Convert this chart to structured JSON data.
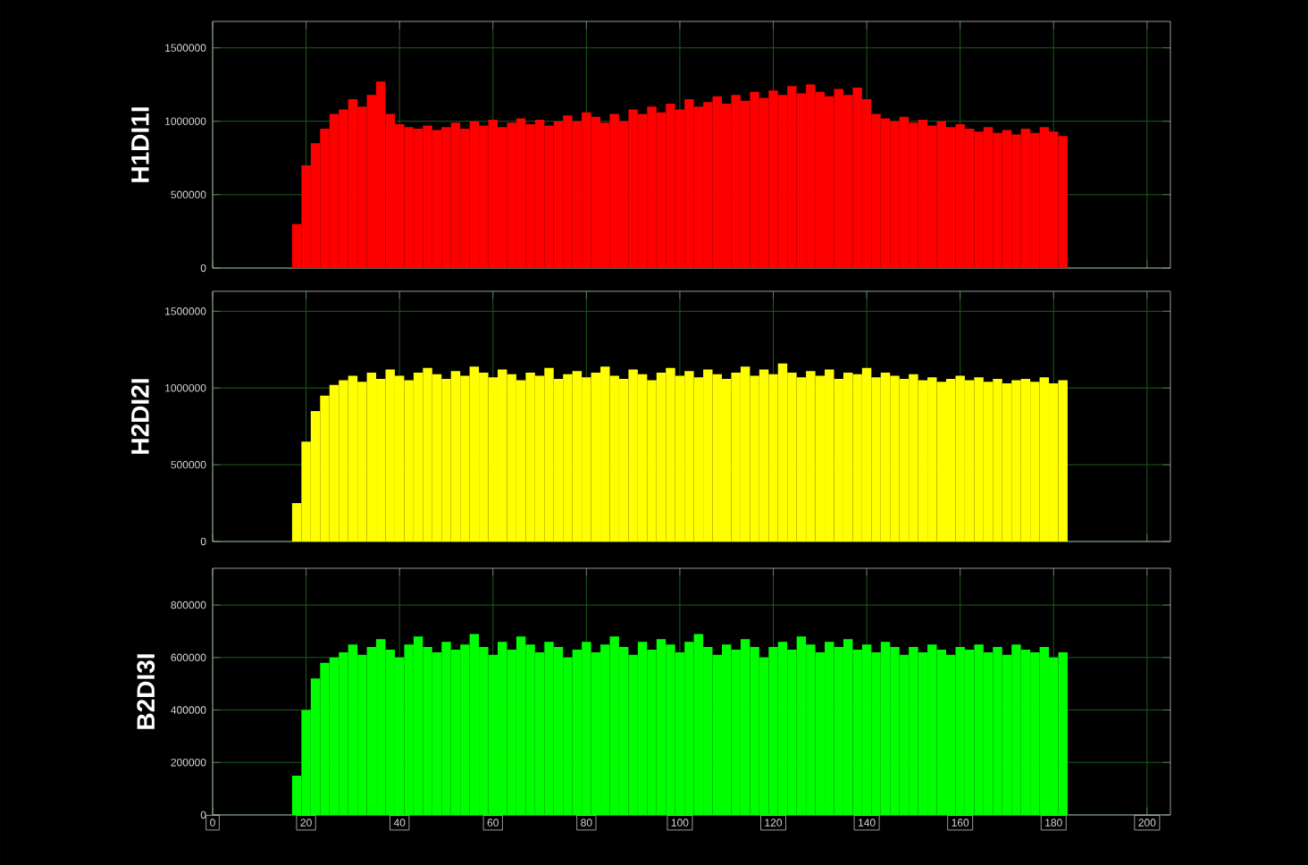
{
  "chart_data": [
    {
      "type": "histogram",
      "ylabel": "H1DI1I",
      "color": "#ff0000",
      "grid": true,
      "tick_labels": "y",
      "xlim": [
        0,
        205
      ],
      "xticks": [
        0,
        20,
        40,
        60,
        80,
        100,
        120,
        140,
        160,
        180,
        200
      ],
      "ylim": [
        0,
        1680000
      ],
      "yticks": [
        0,
        500000,
        1000000,
        1500000
      ],
      "bins": [
        17,
        19,
        21,
        23,
        25,
        27,
        29,
        31,
        33,
        35,
        37,
        39,
        41,
        43,
        45,
        47,
        49,
        51,
        53,
        55,
        57,
        59,
        61,
        63,
        65,
        67,
        69,
        71,
        73,
        75,
        77,
        79,
        81,
        83,
        85,
        87,
        89,
        91,
        93,
        95,
        97,
        99,
        101,
        103,
        105,
        107,
        109,
        111,
        113,
        115,
        117,
        119,
        121,
        123,
        125,
        127,
        129,
        131,
        133,
        135,
        137,
        139,
        141,
        143,
        145,
        147,
        149,
        151,
        153,
        155,
        157,
        159,
        161,
        163,
        165,
        167,
        169,
        171,
        173,
        175,
        177,
        179,
        181,
        183
      ],
      "values": [
        300000,
        700000,
        850000,
        950000,
        1050000,
        1080000,
        1150000,
        1100000,
        1180000,
        1270000,
        1050000,
        980000,
        960000,
        950000,
        970000,
        940000,
        960000,
        990000,
        950000,
        1000000,
        970000,
        1010000,
        960000,
        990000,
        1020000,
        980000,
        1010000,
        970000,
        1000000,
        1040000,
        1000000,
        1060000,
        1030000,
        990000,
        1050000,
        1000000,
        1080000,
        1050000,
        1100000,
        1060000,
        1120000,
        1080000,
        1150000,
        1100000,
        1130000,
        1170000,
        1120000,
        1180000,
        1140000,
        1200000,
        1160000,
        1210000,
        1180000,
        1240000,
        1190000,
        1250000,
        1200000,
        1170000,
        1220000,
        1180000,
        1230000,
        1150000,
        1050000,
        1020000,
        1000000,
        1030000,
        990000,
        1010000,
        970000,
        1000000,
        960000,
        980000,
        950000,
        930000,
        960000,
        920000,
        940000,
        910000,
        950000,
        920000,
        960000,
        930000,
        900000
      ]
    },
    {
      "type": "histogram",
      "ylabel": "H2DI2I",
      "color": "#ffff00",
      "grid": true,
      "tick_labels": "y",
      "xlim": [
        0,
        205
      ],
      "xticks": [
        0,
        20,
        40,
        60,
        80,
        100,
        120,
        140,
        160,
        180,
        200
      ],
      "ylim": [
        0,
        1630000
      ],
      "yticks": [
        0,
        500000,
        1000000,
        1500000
      ],
      "bins": [
        17,
        19,
        21,
        23,
        25,
        27,
        29,
        31,
        33,
        35,
        37,
        39,
        41,
        43,
        45,
        47,
        49,
        51,
        53,
        55,
        57,
        59,
        61,
        63,
        65,
        67,
        69,
        71,
        73,
        75,
        77,
        79,
        81,
        83,
        85,
        87,
        89,
        91,
        93,
        95,
        97,
        99,
        101,
        103,
        105,
        107,
        109,
        111,
        113,
        115,
        117,
        119,
        121,
        123,
        125,
        127,
        129,
        131,
        133,
        135,
        137,
        139,
        141,
        143,
        145,
        147,
        149,
        151,
        153,
        155,
        157,
        159,
        161,
        163,
        165,
        167,
        169,
        171,
        173,
        175,
        177,
        179,
        181,
        183
      ],
      "values": [
        250000,
        650000,
        850000,
        950000,
        1020000,
        1050000,
        1080000,
        1040000,
        1100000,
        1060000,
        1120000,
        1080000,
        1050000,
        1100000,
        1130000,
        1090000,
        1060000,
        1110000,
        1080000,
        1140000,
        1100000,
        1070000,
        1120000,
        1090000,
        1050000,
        1100000,
        1080000,
        1130000,
        1060000,
        1090000,
        1110000,
        1070000,
        1100000,
        1140000,
        1080000,
        1060000,
        1120000,
        1090000,
        1050000,
        1100000,
        1130000,
        1080000,
        1110000,
        1070000,
        1120000,
        1090000,
        1060000,
        1100000,
        1140000,
        1080000,
        1120000,
        1090000,
        1160000,
        1100000,
        1070000,
        1110000,
        1080000,
        1120000,
        1060000,
        1100000,
        1090000,
        1130000,
        1070000,
        1100000,
        1080000,
        1060000,
        1090000,
        1050000,
        1070000,
        1040000,
        1060000,
        1080000,
        1050000,
        1070000,
        1040000,
        1060000,
        1030000,
        1050000,
        1060000,
        1040000,
        1070000,
        1030000,
        1050000
      ]
    },
    {
      "type": "histogram",
      "ylabel": "B2DI3I",
      "color": "#00ff00",
      "grid": true,
      "xlim": [
        0,
        205
      ],
      "xticks": [
        0,
        20,
        40,
        60,
        80,
        100,
        120,
        140,
        160,
        180,
        200
      ],
      "ylim": [
        0,
        940000
      ],
      "yticks": [
        0,
        200000,
        400000,
        600000,
        800000
      ],
      "bins": [
        17,
        19,
        21,
        23,
        25,
        27,
        29,
        31,
        33,
        35,
        37,
        39,
        41,
        43,
        45,
        47,
        49,
        51,
        53,
        55,
        57,
        59,
        61,
        63,
        65,
        67,
        69,
        71,
        73,
        75,
        77,
        79,
        81,
        83,
        85,
        87,
        89,
        91,
        93,
        95,
        97,
        99,
        101,
        103,
        105,
        107,
        109,
        111,
        113,
        115,
        117,
        119,
        121,
        123,
        125,
        127,
        129,
        131,
        133,
        135,
        137,
        139,
        141,
        143,
        145,
        147,
        149,
        151,
        153,
        155,
        157,
        159,
        161,
        163,
        165,
        167,
        169,
        171,
        173,
        175,
        177,
        179,
        181,
        183
      ],
      "values": [
        150000,
        400000,
        520000,
        580000,
        600000,
        620000,
        650000,
        610000,
        640000,
        670000,
        630000,
        600000,
        650000,
        680000,
        640000,
        620000,
        660000,
        630000,
        650000,
        690000,
        640000,
        610000,
        660000,
        630000,
        680000,
        650000,
        620000,
        660000,
        640000,
        600000,
        630000,
        660000,
        620000,
        650000,
        680000,
        640000,
        610000,
        660000,
        630000,
        670000,
        650000,
        620000,
        660000,
        690000,
        640000,
        610000,
        650000,
        630000,
        670000,
        640000,
        600000,
        640000,
        660000,
        630000,
        680000,
        650000,
        620000,
        660000,
        640000,
        670000,
        630000,
        650000,
        620000,
        660000,
        640000,
        610000,
        640000,
        620000,
        650000,
        630000,
        610000,
        640000,
        630000,
        650000,
        620000,
        640000,
        610000,
        650000,
        630000,
        620000,
        640000,
        600000,
        620000
      ]
    }
  ]
}
